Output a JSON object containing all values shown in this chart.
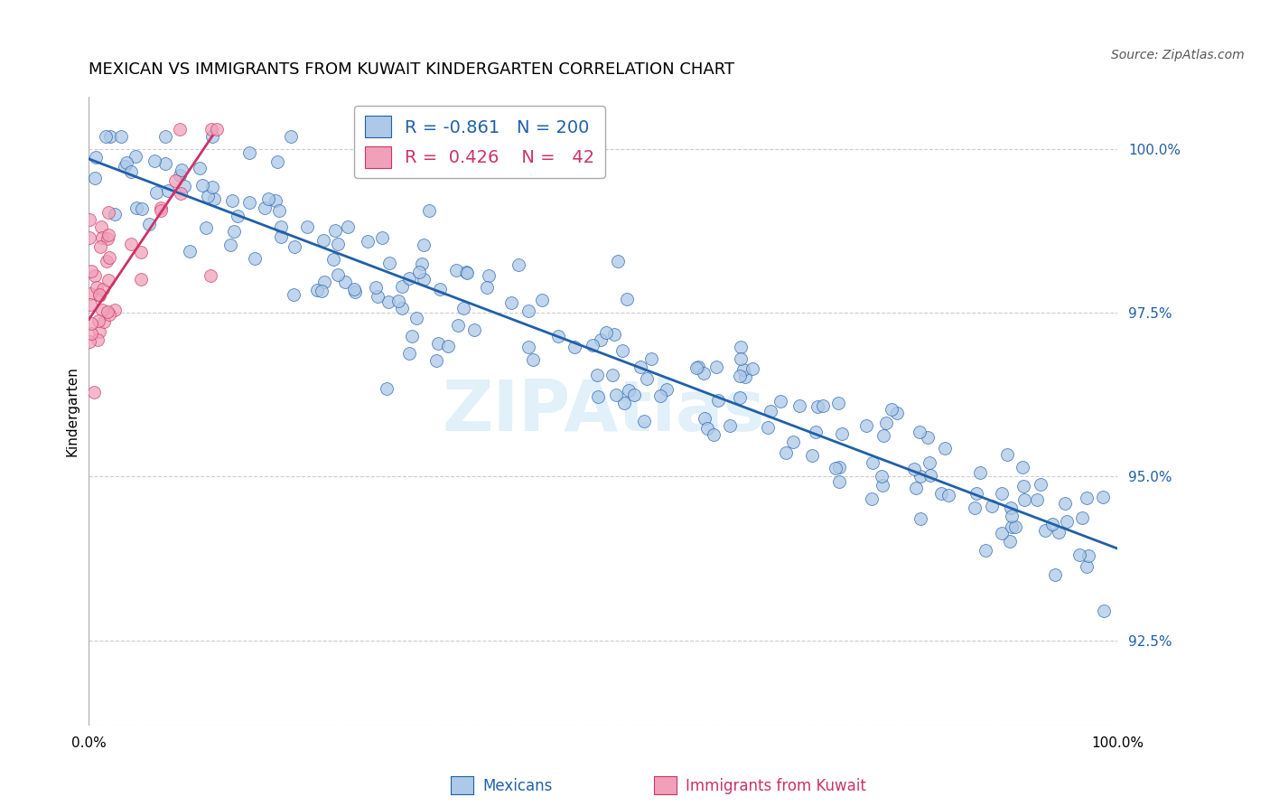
{
  "title": "MEXICAN VS IMMIGRANTS FROM KUWAIT KINDERGARTEN CORRELATION CHART",
  "source": "Source: ZipAtlas.com",
  "ylabel": "Kindergarten",
  "ytick_labels": [
    "100.0%",
    "97.5%",
    "95.0%",
    "92.5%"
  ],
  "ytick_values": [
    1.0,
    0.975,
    0.95,
    0.925
  ],
  "xlim": [
    0.0,
    1.0
  ],
  "ylim": [
    0.912,
    1.008
  ],
  "legend_blue_R": "-0.861",
  "legend_blue_N": "200",
  "legend_pink_R": "0.426",
  "legend_pink_N": "42",
  "blue_color": "#adc8e8",
  "blue_line_color": "#2060a8",
  "pink_color": "#f0a0b8",
  "pink_line_color": "#cc3366",
  "watermark": "ZIPAtlas",
  "title_fontsize": 13,
  "axis_label_fontsize": 11,
  "tick_fontsize": 11,
  "source_fontsize": 10,
  "blue_line_x": [
    0.0,
    1.0
  ],
  "blue_line_y": [
    0.9985,
    0.939
  ],
  "pink_line_x": [
    0.0,
    0.12
  ],
  "pink_line_y": [
    0.974,
    1.002
  ]
}
